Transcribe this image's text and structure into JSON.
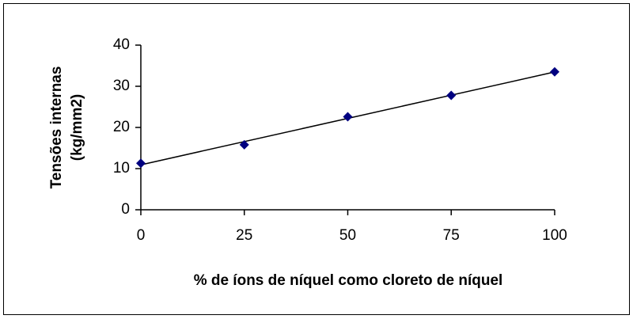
{
  "chart_data": {
    "type": "scatter",
    "ylabel": [
      "Tensões internas",
      "(kg/mm2)"
    ],
    "xlabel": "% de íons de níquel como cloreto de níquel",
    "x": [
      0,
      25,
      50,
      75,
      100
    ],
    "values": [
      11.3,
      15.8,
      22.6,
      27.8,
      33.5
    ],
    "color": "#000080",
    "trendline": "linear",
    "trendline_color": "#000000",
    "xlim": [
      0,
      100
    ],
    "xticks": [
      0,
      25,
      50,
      75,
      100
    ],
    "ylim": [
      0,
      40
    ],
    "yticks": [
      0,
      10,
      20,
      30,
      40
    ],
    "grid": false
  }
}
